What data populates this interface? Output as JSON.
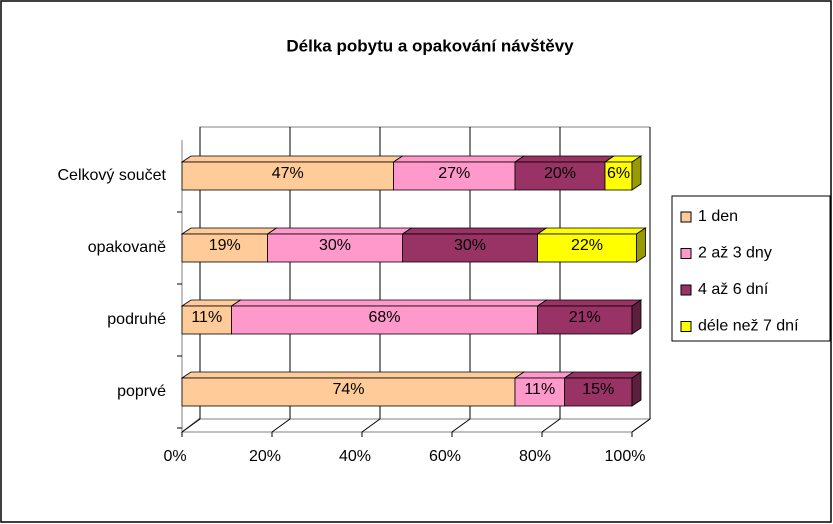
{
  "chart_data": {
    "type": "bar3d_stacked_horizontal",
    "title": "Délka pobytu a opakování návštěvy",
    "categories": [
      "Celkový součet",
      "opakovaně",
      "podruhé",
      "poprvé"
    ],
    "series": [
      {
        "name": "1 den",
        "color": "#FFCC99",
        "values": [
          47,
          19,
          11,
          74
        ],
        "value_labels": [
          "47%",
          "19%",
          "11%",
          "74%"
        ]
      },
      {
        "name": "2 až 3 dny",
        "color": "#FF99CC",
        "values": [
          27,
          30,
          68,
          11
        ],
        "value_labels": [
          "27%",
          "30%",
          "68%",
          "11%"
        ]
      },
      {
        "name": "4 až 6 dní",
        "color": "#993366",
        "values": [
          20,
          30,
          21,
          15
        ],
        "value_labels": [
          "20%",
          "30%",
          "21%",
          "15%"
        ]
      },
      {
        "name": "déle než 7 dní",
        "color": "#FFFF00",
        "values": [
          6,
          22,
          null,
          null
        ],
        "value_labels": [
          "6%",
          "22%",
          null,
          null
        ]
      }
    ],
    "xlim": [
      0,
      100
    ],
    "xticks": [
      {
        "value": 0,
        "label": "0%"
      },
      {
        "value": 20,
        "label": "20%"
      },
      {
        "value": 40,
        "label": "40%"
      },
      {
        "value": 60,
        "label": "60%"
      },
      {
        "value": 80,
        "label": "80%"
      },
      {
        "value": 100,
        "label": "100%"
      }
    ],
    "grid": true,
    "legend": "right"
  }
}
